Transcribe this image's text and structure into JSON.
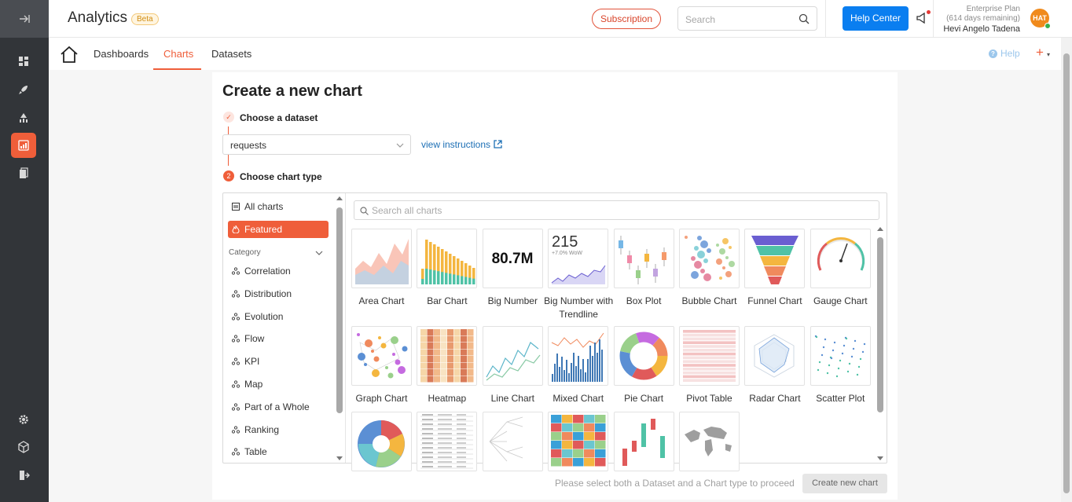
{
  "header": {
    "app_title": "Analytics",
    "beta_badge": "Beta",
    "subscription_label": "Subscription",
    "search_placeholder": "Search",
    "help_center_label": "Help Center",
    "plan_line1": "Enterprise Plan",
    "plan_line2": "(614 days remaining)",
    "user_name": "Hevi Angelo Tadena",
    "avatar_initials": "HAT"
  },
  "nav": {
    "tabs": [
      {
        "label": "Dashboards"
      },
      {
        "label": "Charts"
      },
      {
        "label": "Datasets"
      }
    ],
    "help_label": "Help",
    "plus_label": "+"
  },
  "page": {
    "title": "Create a new chart",
    "step1_label": "Choose a dataset",
    "step2_number": "2",
    "step2_label": "Choose chart type",
    "dataset_value": "requests",
    "instructions_link": "view instructions",
    "hint": "Please select both a Dataset and a Chart type to proceed",
    "create_button": "Create new chart"
  },
  "categories": {
    "all_label": "All charts",
    "featured_label": "Featured",
    "header_label": "Category",
    "items": [
      "Correlation",
      "Distribution",
      "Evolution",
      "Flow",
      "KPI",
      "Map",
      "Part of a Whole",
      "Ranking",
      "Table"
    ]
  },
  "chart_search_placeholder": "Search all charts",
  "charts": [
    {
      "label": "Area Chart"
    },
    {
      "label": "Bar Chart"
    },
    {
      "label": "Big Number",
      "thumb_value": "80.7M"
    },
    {
      "label": "Big Number with Trendline",
      "thumb_value": "215",
      "thumb_sub": "+7.0% WoW"
    },
    {
      "label": "Box Plot"
    },
    {
      "label": "Bubble Chart"
    },
    {
      "label": "Funnel Chart"
    },
    {
      "label": "Gauge Chart"
    },
    {
      "label": "Graph Chart"
    },
    {
      "label": "Heatmap"
    },
    {
      "label": "Line Chart"
    },
    {
      "label": "Mixed Chart"
    },
    {
      "label": "Pie Chart"
    },
    {
      "label": "Pivot Table"
    },
    {
      "label": "Radar Chart"
    },
    {
      "label": "Scatter Plot"
    },
    {
      "label": ""
    },
    {
      "label": ""
    },
    {
      "label": ""
    },
    {
      "label": ""
    },
    {
      "label": ""
    },
    {
      "label": ""
    }
  ],
  "colors": {
    "accent": "#ef5e3a",
    "primary_button": "#0a7ef0",
    "rail": "#323539"
  },
  "rail_icons": [
    "expand-icon",
    "dashboard-icon",
    "rocket-icon",
    "sql-lab-icon",
    "charts-icon",
    "reports-icon",
    "settings-icon",
    "cube-icon",
    "logout-icon"
  ]
}
